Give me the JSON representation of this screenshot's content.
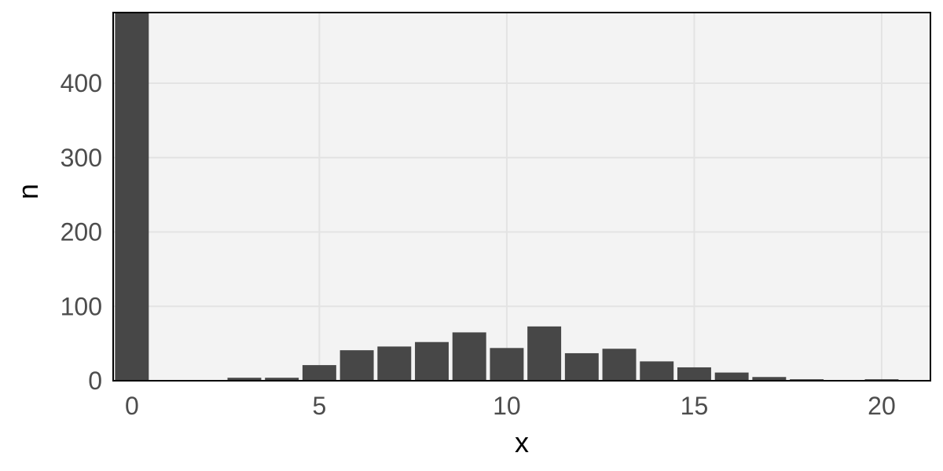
{
  "chart_data": {
    "type": "bar",
    "title": "",
    "xlabel": "x",
    "ylabel": "n",
    "x": [
      0,
      1,
      2,
      3,
      4,
      5,
      6,
      7,
      8,
      9,
      10,
      11,
      12,
      13,
      14,
      15,
      16,
      17,
      18,
      19,
      20
    ],
    "values": [
      495,
      0,
      0,
      4,
      4,
      21,
      41,
      46,
      52,
      65,
      44,
      73,
      37,
      43,
      26,
      18,
      11,
      5,
      2,
      0,
      2
    ],
    "xlim": [
      -0.5,
      21.3
    ],
    "ylim": [
      0,
      495
    ],
    "xticks": [
      0,
      5,
      10,
      15,
      20
    ],
    "yticks": [
      0,
      100,
      200,
      300,
      400
    ],
    "grid": true,
    "legend": "none",
    "colors": {
      "bar": "#474747",
      "panel": "#f3f3f3",
      "grid": "#e3e3e3",
      "border": "#000000",
      "tick_text": "#4d4d4d",
      "title_text": "#000000"
    }
  }
}
